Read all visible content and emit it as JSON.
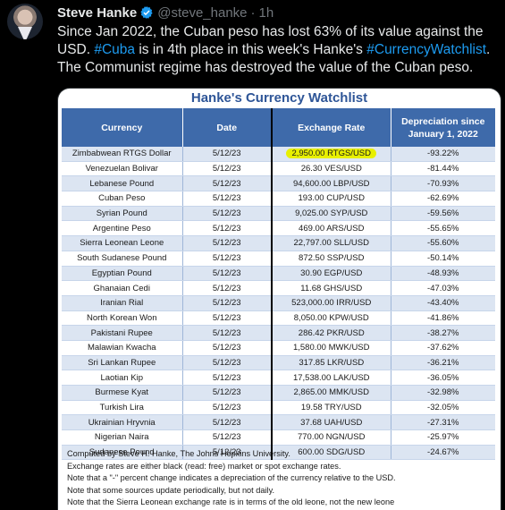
{
  "tweet": {
    "author_name": "Steve Hanke",
    "handle": "@steve_hanke",
    "separator": "·",
    "time": "1h",
    "text_part1": "Since Jan 2022, the Cuban peso has lost 63% of its value against the USD. ",
    "hashtag_cuba": "#Cuba",
    "text_part2": " is in 4th place in this week's Hanke's ",
    "hashtag_watchlist": "#CurrencyWatchlist",
    "text_part3": ". The Communist regime has destroyed the value of the Cuban peso.",
    "link_color": "#1d9bf0",
    "verified_icon": "verified-badge-icon"
  },
  "watchlist": {
    "title": "Hanke's Currency Watchlist",
    "headers": {
      "currency": "Currency",
      "date": "Date",
      "rate": "Exchange Rate",
      "depreciation_line1": "Depreciation since",
      "depreciation_line2": "January 1, 2022"
    },
    "rows": [
      {
        "currency": "Zimbabwean RTGS Dollar",
        "date": "5/12/23",
        "rate": "2,950.00 RTGS/USD",
        "depreciation": "-93.22%"
      },
      {
        "currency": "Venezuelan Bolivar",
        "date": "5/12/23",
        "rate": "26.30 VES/USD",
        "depreciation": "-81.44%"
      },
      {
        "currency": "Lebanese Pound",
        "date": "5/12/23",
        "rate": "94,600.00 LBP/USD",
        "depreciation": "-70.93%"
      },
      {
        "currency": "Cuban Peso",
        "date": "5/12/23",
        "rate": "193.00 CUP/USD",
        "depreciation": "-62.69%"
      },
      {
        "currency": "Syrian Pound",
        "date": "5/12/23",
        "rate": "9,025.00 SYP/USD",
        "depreciation": "-59.56%"
      },
      {
        "currency": "Argentine Peso",
        "date": "5/12/23",
        "rate": "469.00 ARS/USD",
        "depreciation": "-55.65%"
      },
      {
        "currency": "Sierra Leonean Leone",
        "date": "5/12/23",
        "rate": "22,797.00 SLL/USD",
        "depreciation": "-55.60%"
      },
      {
        "currency": "South Sudanese Pound",
        "date": "5/12/23",
        "rate": "872.50 SSP/USD",
        "depreciation": "-50.14%"
      },
      {
        "currency": "Egyptian Pound",
        "date": "5/12/23",
        "rate": "30.90 EGP/USD",
        "depreciation": "-48.93%"
      },
      {
        "currency": "Ghanaian Cedi",
        "date": "5/12/23",
        "rate": "11.68 GHS/USD",
        "depreciation": "-47.03%"
      },
      {
        "currency": "Iranian Rial",
        "date": "5/12/23",
        "rate": "523,000.00 IRR/USD",
        "depreciation": "-43.40%"
      },
      {
        "currency": "North Korean Won",
        "date": "5/12/23",
        "rate": "8,050.00 KPW/USD",
        "depreciation": "-41.86%"
      },
      {
        "currency": "Pakistani Rupee",
        "date": "5/12/23",
        "rate": "286.42 PKR/USD",
        "depreciation": "-38.27%"
      },
      {
        "currency": "Malawian Kwacha",
        "date": "5/12/23",
        "rate": "1,580.00 MWK/USD",
        "depreciation": "-37.62%"
      },
      {
        "currency": "Sri Lankan Rupee",
        "date": "5/12/23",
        "rate": "317.85 LKR/USD",
        "depreciation": "-36.21%"
      },
      {
        "currency": "Laotian Kip",
        "date": "5/12/23",
        "rate": "17,538.00 LAK/USD",
        "depreciation": "-36.05%"
      },
      {
        "currency": "Burmese Kyat",
        "date": "5/12/23",
        "rate": "2,865.00 MMK/USD",
        "depreciation": "-32.98%"
      },
      {
        "currency": "Turkish Lira",
        "date": "5/12/23",
        "rate": "19.58 TRY/USD",
        "depreciation": "-32.05%"
      },
      {
        "currency": "Ukrainian Hryvnia",
        "date": "5/12/23",
        "rate": "37.68 UAH/USD",
        "depreciation": "-27.31%"
      },
      {
        "currency": "Nigerian Naira",
        "date": "5/12/23",
        "rate": "770.00 NGN/USD",
        "depreciation": "-25.97%"
      },
      {
        "currency": "Sudanese Pound",
        "date": "5/12/23",
        "rate": "600.00 SDG/USD",
        "depreciation": "-24.67%"
      }
    ],
    "notes": [
      "Computed by Steve H. Hanke, The Johns Hopkins University.",
      "Exchange rates are either black (read: free) market or spot exchange rates.",
      "Note that a \"-\" percent change indicates a depreciation of the currency relative to the USD.",
      "Note that some sources update periodically, but not daily.",
      "Note that the Sierra Leonean exchange rate is in terms of the old leone, not the new leone"
    ],
    "colors": {
      "title": "#2e5597",
      "header_bg": "#3e6aaa",
      "stripe": "#dce5f2",
      "highlight": "#e8f000"
    }
  }
}
